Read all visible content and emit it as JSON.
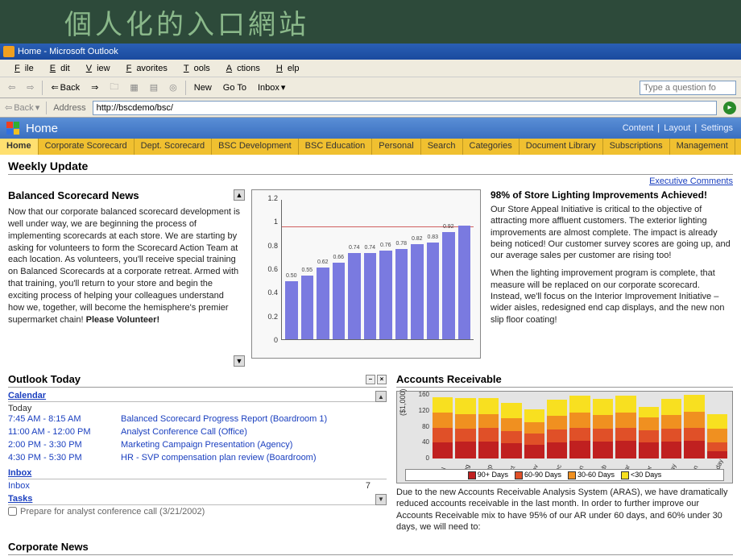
{
  "hero": "個人化的入口網站",
  "window_title": "Home - Microsoft Outlook",
  "menu": [
    "File",
    "Edit",
    "View",
    "Favorites",
    "Tools",
    "Actions",
    "Help"
  ],
  "toolbar": {
    "back": "Back",
    "new": "New",
    "goto": "Go To",
    "inbox": "Inbox",
    "question_placeholder": "Type a question fo"
  },
  "address": {
    "back": "Back",
    "label": "Address",
    "url": "http://bscdemo/bsc/"
  },
  "banner": {
    "title": "Home",
    "links": [
      "Content",
      "Layout",
      "Settings"
    ]
  },
  "tabs": [
    "Home",
    "Corporate Scorecard",
    "Dept. Scorecard",
    "BSC Development",
    "BSC Education",
    "Personal",
    "Search",
    "Categories",
    "Document Library",
    "Subscriptions",
    "Management"
  ],
  "weekly_title": "Weekly Update",
  "exec_link": "Executive Comments",
  "news": {
    "title": "Balanced Scorecard News",
    "body": "Now that our corporate balanced scorecard development is well under way, we are beginning the process of implementing scorecards at each store. We are starting by asking for volunteers to form the Scorecard Action Team at each location. As volunteers, you'll receive special training on Balanced Scorecards at a corporate retreat. Armed with that training, you'll return to your store and begin the exciting process of helping your colleagues understand how we, together, will become the hemisphere's premier supermarket chain! ",
    "cta": "Please Volunteer!"
  },
  "chart": {
    "ylim": [
      0,
      1.2
    ],
    "tick_step": 0.2,
    "yticks": [
      "0",
      "0.2",
      "0.4",
      "0.6",
      "0.8",
      "1",
      "1.2"
    ],
    "bars": [
      {
        "v": 0.5,
        "label": "0.50"
      },
      {
        "v": 0.55,
        "label": "0.55"
      },
      {
        "v": 0.62,
        "label": "0.62"
      },
      {
        "v": 0.66,
        "label": "0.66"
      },
      {
        "v": 0.74,
        "label": "0.74"
      },
      {
        "v": 0.74,
        "label": "0.74"
      },
      {
        "v": 0.76,
        "label": "0.76"
      },
      {
        "v": 0.78,
        "label": "0.78"
      },
      {
        "v": 0.82,
        "label": "0.82"
      },
      {
        "v": 0.83,
        "label": "0.83"
      },
      {
        "v": 0.92,
        "label": "0.92"
      },
      {
        "v": 0.98,
        "label": ""
      }
    ],
    "bar_color": "#7a7ae0",
    "target_line": 1.0
  },
  "right": {
    "title": "98% of Store Lighting Improvements Achieved!",
    "p1": "Our Store Appeal Initiative is critical to the objective of attracting more affluent customers. The exterior lighting improvements are almost complete. The impact is already being noticed! Our customer survey scores are going up, and our average sales per customer are rising too!",
    "p2": "When the lighting improvement program is complete, that measure will be replaced on our corporate scorecard. Instead, we'll focus on the Interior Improvement Initiative – wider aisles, redesigned end cap displays, and the new non slip floor coating!"
  },
  "today": {
    "title": "Outlook Today",
    "calendar_h": "Calendar",
    "today_label": "Today",
    "events": [
      {
        "t": "7:45 AM - 8:15 AM",
        "d": "Balanced Scorecard Progress Report (Boardroom 1)"
      },
      {
        "t": "11:00 AM - 12:00 PM",
        "d": "Analyst Conference Call (Office)"
      },
      {
        "t": "2:00 PM - 3:30 PM",
        "d": "Marketing Campaign Presentation (Agency)"
      },
      {
        "t": "4:30 PM - 5:30 PM",
        "d": "HR - SVP compensation plan review (Boardroom)"
      }
    ],
    "inbox_h": "Inbox",
    "inbox_label": "Inbox",
    "inbox_count": "7",
    "tasks_h": "Tasks",
    "task": "Prepare for analyst conference call (3/21/2002)"
  },
  "ar": {
    "title": "Accounts Receivable",
    "ylabel": "($1,000)",
    "ymax": 160,
    "yticks": [
      "0",
      "40",
      "80",
      "120",
      "160"
    ],
    "colors": {
      "d90": "#c02020",
      "d60": "#e05028",
      "d30": "#f09020",
      "d0": "#f8e020"
    },
    "legend": [
      {
        "k": "d90",
        "l": "90+ Days"
      },
      {
        "k": "d60",
        "l": "60-90 Days"
      },
      {
        "k": "d30",
        "l": "30-60 Days"
      },
      {
        "k": "d0",
        "l": "<30 Days"
      }
    ],
    "months": [
      "Jul",
      "Aug",
      "Sep",
      "Oct",
      "Nov",
      "Dec",
      "Jan",
      "Feb",
      "Mar",
      "Apr",
      "May",
      "Jun",
      "Today"
    ],
    "series": [
      {
        "d90": 40,
        "d60": 36,
        "d30": 40,
        "d0": 38
      },
      {
        "d90": 42,
        "d60": 32,
        "d30": 38,
        "d0": 40
      },
      {
        "d90": 42,
        "d60": 34,
        "d30": 36,
        "d0": 40
      },
      {
        "d90": 38,
        "d60": 30,
        "d30": 34,
        "d0": 38
      },
      {
        "d90": 34,
        "d60": 28,
        "d30": 30,
        "d0": 32
      },
      {
        "d90": 40,
        "d60": 32,
        "d30": 36,
        "d0": 40
      },
      {
        "d90": 44,
        "d60": 34,
        "d30": 38,
        "d0": 42
      },
      {
        "d90": 42,
        "d60": 32,
        "d30": 36,
        "d0": 40
      },
      {
        "d90": 44,
        "d60": 34,
        "d30": 38,
        "d0": 42
      },
      {
        "d90": 40,
        "d60": 30,
        "d30": 34,
        "d0": 26
      },
      {
        "d90": 42,
        "d60": 32,
        "d30": 36,
        "d0": 40
      },
      {
        "d90": 44,
        "d60": 34,
        "d30": 40,
        "d0": 42
      },
      {
        "d90": 18,
        "d60": 22,
        "d30": 34,
        "d0": 38
      }
    ],
    "body": "Due to the new Accounts Receivable Analysis System (ARAS), we have dramatically reduced accounts receivable in the last month. In order to further improve our Accounts Receivable mix to have 95% of our AR under 60 days, and 60% under 30 days, we will need to:"
  },
  "corporate_h": "Corporate News"
}
